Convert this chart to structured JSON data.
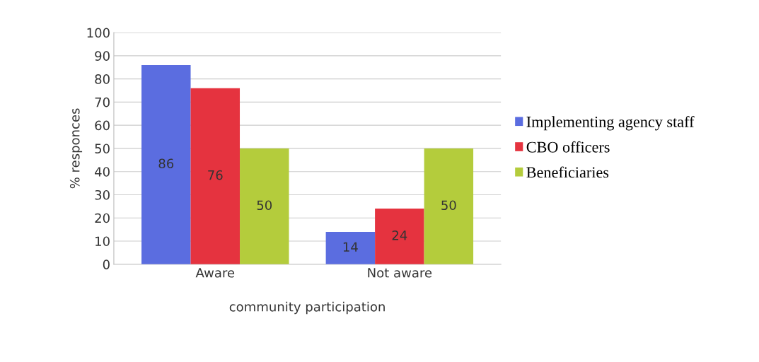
{
  "chart_data": {
    "type": "bar",
    "xlabel": "community participation",
    "ylabel": "% responces",
    "categories": [
      "Aware",
      "Not aware"
    ],
    "series": [
      {
        "name": "Implementing agency staff",
        "color": "#5b6de0",
        "values": [
          86,
          14
        ]
      },
      {
        "name": "CBO officers",
        "color": "#e5333f",
        "values": [
          76,
          24
        ]
      },
      {
        "name": "Beneficiaries",
        "color": "#b4cc3c",
        "values": [
          50,
          50
        ]
      }
    ],
    "ylim": [
      0,
      100
    ],
    "yticks": [
      0,
      10,
      20,
      30,
      40,
      50,
      60,
      70,
      80,
      90,
      100
    ],
    "grid": "y",
    "legend": "right",
    "data_labels": true
  }
}
